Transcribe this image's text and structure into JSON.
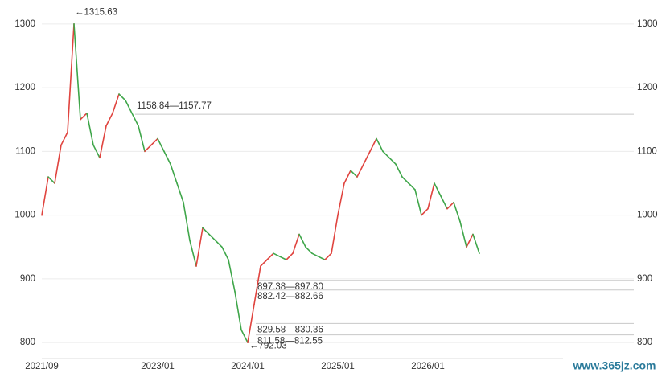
{
  "chart_data": {
    "type": "line",
    "categories": [
      "2021/09",
      null,
      null,
      null,
      null,
      null,
      null,
      null,
      null,
      null,
      null,
      null,
      null,
      null,
      null,
      null,
      null,
      null,
      "2023/01",
      null,
      null,
      null,
      null,
      null,
      null,
      null,
      null,
      null,
      null,
      null,
      null,
      null,
      "2024/01",
      null,
      null,
      null,
      null,
      null,
      null,
      null,
      null,
      null,
      null,
      null,
      null,
      null,
      "2025/01",
      null,
      null,
      null,
      null,
      null,
      null,
      null,
      null,
      null,
      null,
      null,
      null,
      null,
      "2026/01",
      null,
      null,
      null,
      null,
      null,
      null,
      null,
      null
    ],
    "values": [
      1000,
      1060,
      1050,
      1110,
      1130,
      1300,
      1150,
      1160,
      1110,
      1090,
      1140,
      1160,
      1190,
      1180,
      1160,
      1140,
      1100,
      1110,
      1120,
      1100,
      1080,
      1050,
      1020,
      960,
      920,
      980,
      970,
      960,
      950,
      930,
      880,
      820,
      800,
      860,
      920,
      930,
      940,
      935,
      930,
      940,
      970,
      950,
      940,
      935,
      930,
      940,
      1000,
      1050,
      1070,
      1060,
      1080,
      1100,
      1120,
      1100,
      1090,
      1080,
      1060,
      1050,
      1040,
      1000,
      1010,
      1050,
      1030,
      1010,
      1020,
      990,
      950,
      970,
      940
    ],
    "up_color": "#e0443f",
    "down_color": "#3fa64a",
    "ylim": [
      775,
      1325
    ],
    "yticks": [
      800,
      900,
      1000,
      1100,
      1200,
      1300
    ],
    "grid": true,
    "max_label": {
      "text": "←1315.63",
      "value": 1315.63
    },
    "min_label": {
      "text": "←792.03",
      "value": 792.03
    },
    "levels": [
      {
        "text": "1158.84—1157.77",
        "value": 1158.3
      },
      {
        "text": "897.38—897.80",
        "value": 897.6
      },
      {
        "text": "882.42—882.66",
        "value": 882.5
      },
      {
        "text": "829.58—830.36",
        "value": 830
      },
      {
        "text": "811.58—812.55",
        "value": 812
      }
    ],
    "watermark": "www.365jz.com"
  }
}
